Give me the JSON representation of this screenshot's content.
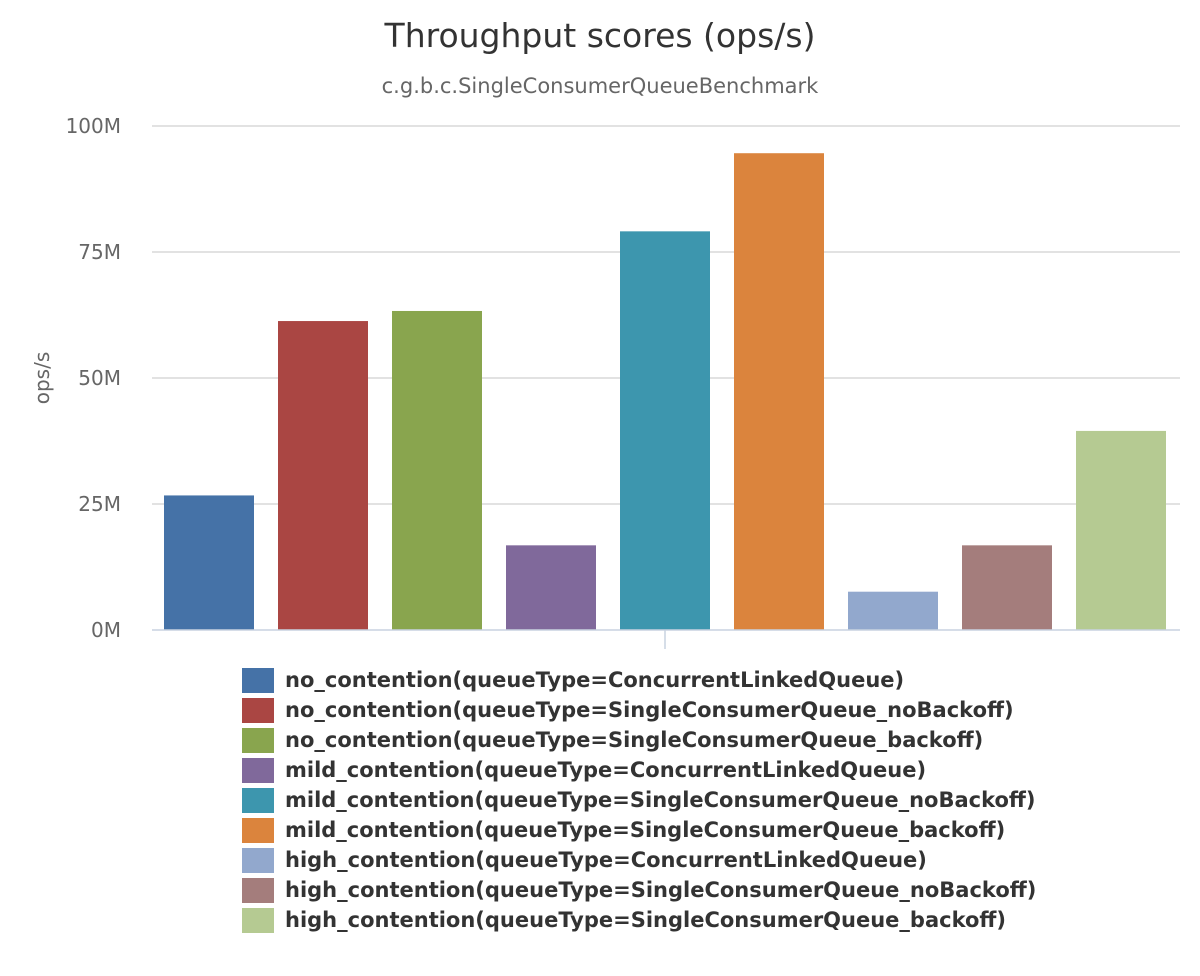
{
  "chart_data": {
    "type": "bar",
    "title": "Throughput scores (ops/s)",
    "subtitle": "c.g.b.c.SingleConsumerQueueBenchmark",
    "ylabel": "ops/s",
    "ylim": [
      0,
      100000000
    ],
    "yticks": [
      0,
      25000000,
      50000000,
      75000000,
      100000000
    ],
    "ytick_labels": [
      "0M",
      "25M",
      "50M",
      "75M",
      "100M"
    ],
    "grid": true,
    "legend_position": "bottom",
    "series": [
      {
        "name": "no_contention(queueType=ConcurrentLinkedQueue)",
        "value": 26700000,
        "color": "#4572a7"
      },
      {
        "name": "no_contention(queueType=SingleConsumerQueue_noBackoff)",
        "value": 61300000,
        "color": "#aa4643"
      },
      {
        "name": "no_contention(queueType=SingleConsumerQueue_backoff)",
        "value": 63300000,
        "color": "#89a54e"
      },
      {
        "name": "mild_contention(queueType=ConcurrentLinkedQueue)",
        "value": 16800000,
        "color": "#80699b"
      },
      {
        "name": "mild_contention(queueType=SingleConsumerQueue_noBackoff)",
        "value": 79100000,
        "color": "#3d96ae"
      },
      {
        "name": "mild_contention(queueType=SingleConsumerQueue_backoff)",
        "value": 94600000,
        "color": "#db843d"
      },
      {
        "name": "high_contention(queueType=ConcurrentLinkedQueue)",
        "value": 7600000,
        "color": "#92a8cd"
      },
      {
        "name": "high_contention(queueType=SingleConsumerQueue_noBackoff)",
        "value": 16800000,
        "color": "#a47d7c"
      },
      {
        "name": "high_contention(queueType=SingleConsumerQueue_backoff)",
        "value": 39500000,
        "color": "#b5ca92"
      }
    ]
  }
}
